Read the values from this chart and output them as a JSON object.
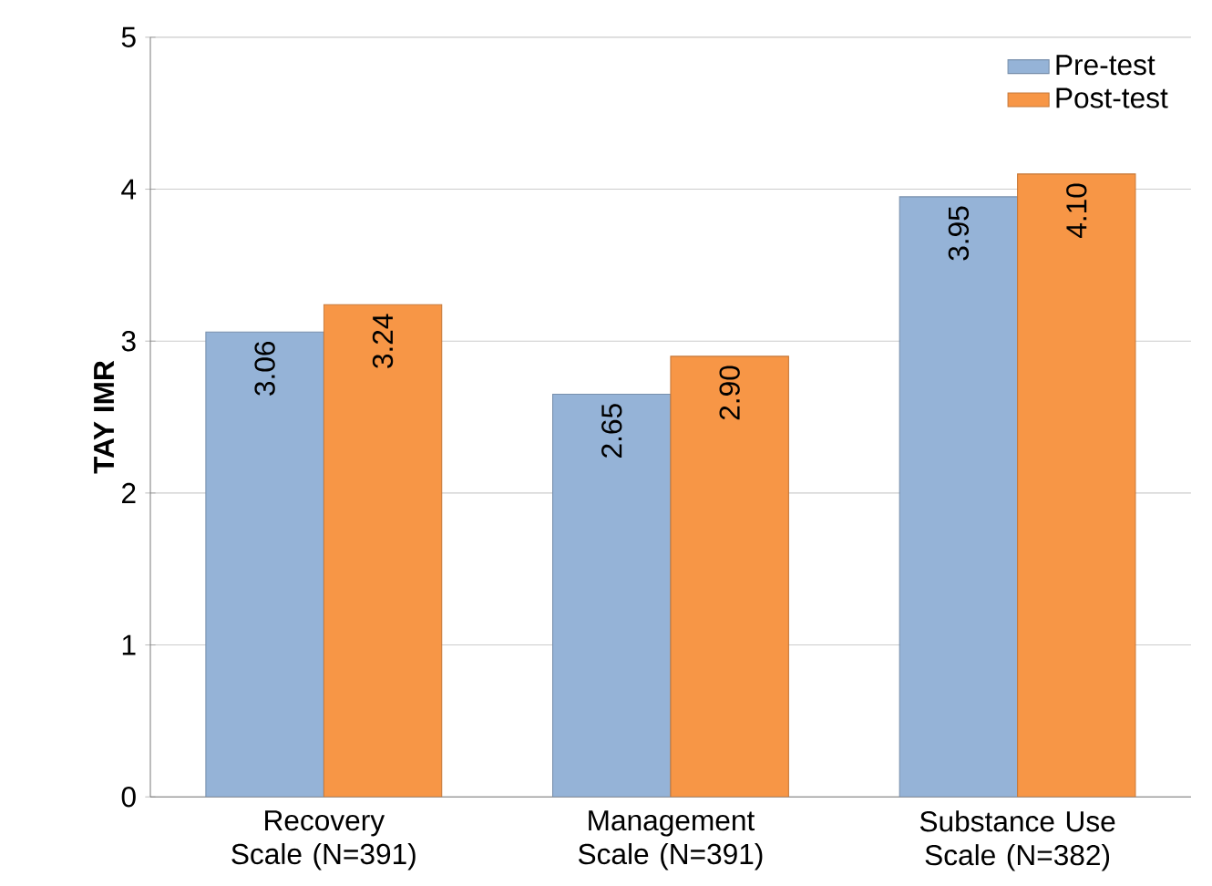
{
  "chart_data": {
    "type": "bar",
    "ylabel": "TAY IMR",
    "categories": [
      "Recovery Scale (N=391)",
      "Management Scale (N=391)",
      "Substance Use Scale (N=382)"
    ],
    "series": [
      {
        "name": "Pre-test",
        "color": "#95b3d7",
        "values": [
          3.06,
          2.65,
          3.95
        ],
        "value_labels": [
          "3.06",
          "2.65",
          "3.95"
        ]
      },
      {
        "name": "Post-test",
        "color": "#f79646",
        "values": [
          3.24,
          2.9,
          4.1
        ],
        "value_labels": [
          "3.24",
          "2.90",
          "4.10"
        ]
      }
    ],
    "ylim": [
      0,
      5
    ],
    "yticks": [
      0,
      1,
      2,
      3,
      4,
      5
    ],
    "grid": "y",
    "legend": "top right"
  }
}
